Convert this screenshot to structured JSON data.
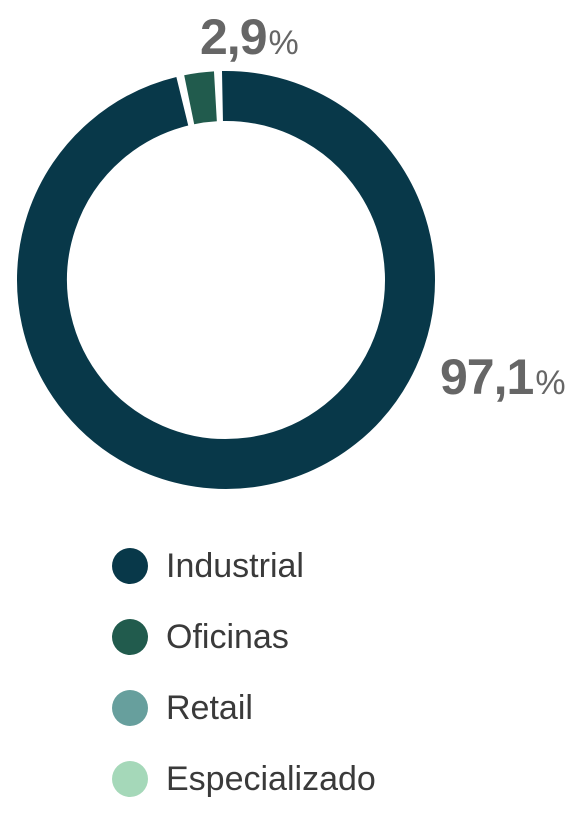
{
  "chart_data": {
    "type": "pie",
    "subtype": "donut",
    "series": [
      {
        "name": "Industrial",
        "value": 97.1,
        "label": "97,1",
        "color": "#083849"
      },
      {
        "name": "Oficinas",
        "value": 2.9,
        "label": "2,9",
        "color": "#215B4D"
      },
      {
        "name": "Retail",
        "value": 0,
        "color": "#679F9D"
      },
      {
        "name": "Especializado",
        "value": 0,
        "color": "#A5D8B9"
      }
    ],
    "unit_symbol": "%",
    "legend_position": "bottom"
  }
}
